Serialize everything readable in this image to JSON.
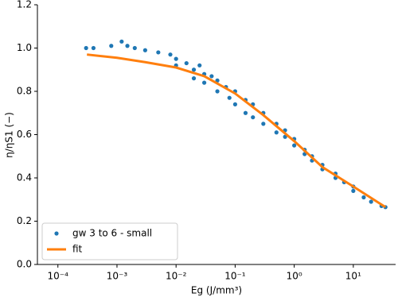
{
  "chart_data": {
    "type": "scatter",
    "xlabel": "Eg (J/mm³)",
    "ylabel": "η/ηS1 (−)",
    "xscale": "log",
    "xlim": [
      4.5e-05,
      52
    ],
    "ylim": [
      0,
      1.2
    ],
    "xticks": [
      {
        "value": 0.0001,
        "label": "10⁻⁴"
      },
      {
        "value": 0.001,
        "label": "10⁻³"
      },
      {
        "value": 0.01,
        "label": "10⁻²"
      },
      {
        "value": 0.1,
        "label": "10⁻¹"
      },
      {
        "value": 1,
        "label": "10⁰"
      },
      {
        "value": 10,
        "label": "10¹"
      }
    ],
    "yticks": [
      {
        "value": 0,
        "label": "0.0"
      },
      0.2,
      0.4,
      0.6,
      0.8,
      {
        "value": 1,
        "label": "1.0"
      },
      1.2
    ],
    "legend": "lower left",
    "series": [
      {
        "name": "gw 3 to 6 - small",
        "type": "scatter",
        "color": "#1f77b4",
        "x": [
          0.0003,
          0.0004,
          0.0008,
          0.0012,
          0.0015,
          0.002,
          0.003,
          0.005,
          0.008,
          0.01,
          0.01,
          0.015,
          0.02,
          0.02,
          0.025,
          0.03,
          0.03,
          0.04,
          0.05,
          0.05,
          0.07,
          0.08,
          0.1,
          0.1,
          0.15,
          0.15,
          0.2,
          0.2,
          0.3,
          0.3,
          0.5,
          0.5,
          0.7,
          0.7,
          1,
          1,
          1.5,
          1.5,
          2,
          2,
          3,
          3,
          5,
          5,
          7,
          10,
          10,
          15,
          20,
          30,
          35
        ],
        "values": [
          1.0,
          1.0,
          1.01,
          1.03,
          1.01,
          1.0,
          0.99,
          0.98,
          0.97,
          0.95,
          0.92,
          0.93,
          0.9,
          0.86,
          0.92,
          0.88,
          0.84,
          0.87,
          0.85,
          0.8,
          0.82,
          0.77,
          0.8,
          0.74,
          0.76,
          0.7,
          0.74,
          0.68,
          0.7,
          0.65,
          0.65,
          0.61,
          0.62,
          0.59,
          0.58,
          0.55,
          0.53,
          0.51,
          0.5,
          0.48,
          0.46,
          0.44,
          0.42,
          0.4,
          0.38,
          0.36,
          0.34,
          0.31,
          0.29,
          0.27,
          0.265
        ]
      },
      {
        "name": "fit",
        "type": "line",
        "color": "#ff7f0e",
        "x": [
          0.00031,
          0.001,
          0.003,
          0.01,
          0.03,
          0.1,
          0.3,
          1,
          3,
          10,
          35
        ],
        "values": [
          0.97,
          0.955,
          0.935,
          0.91,
          0.87,
          0.79,
          0.69,
          0.57,
          0.45,
          0.36,
          0.265
        ]
      }
    ]
  }
}
